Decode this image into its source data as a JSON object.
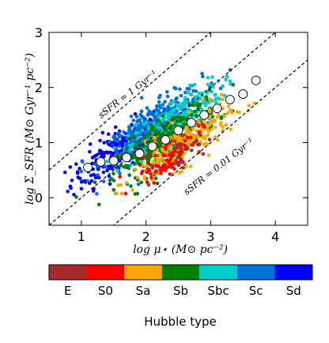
{
  "chart_data": {
    "type": "scatter",
    "xlabel": "log μ⋆ (M⊙ pc⁻²)",
    "ylabel": "log Σ_SFR (M⊙ Gyr⁻¹ pc⁻²)",
    "xlim": [
      0.5,
      4.5
    ],
    "ylim": [
      -0.5,
      3.0
    ],
    "xticks": [
      1,
      2,
      3,
      4
    ],
    "yticks": [
      0,
      1,
      2,
      3
    ],
    "grid": false,
    "reference_lines": [
      {
        "label": "sSFR = 1 Gyr⁻¹",
        "log_ssfr": 0
      },
      {
        "label": "",
        "log_ssfr": -1
      },
      {
        "label": "sSFR = 0.01 Gyr⁻¹",
        "log_ssfr": -2
      }
    ],
    "binned_means": {
      "x": [
        1.1,
        1.3,
        1.5,
        1.7,
        1.9,
        2.1,
        2.3,
        2.5,
        2.7,
        2.9,
        3.1,
        3.3,
        3.5,
        3.7
      ],
      "y": [
        0.55,
        0.65,
        0.67,
        0.73,
        0.8,
        0.93,
        1.05,
        1.22,
        1.36,
        1.5,
        1.62,
        1.78,
        1.88,
        2.13
      ]
    },
    "scatter_clusters": [
      {
        "type": "Sd",
        "cx": 1.55,
        "cy": 0.85,
        "sx": 0.35,
        "sy": 0.33,
        "n": 220
      },
      {
        "type": "Sc",
        "cx": 2.1,
        "cy": 1.25,
        "sx": 0.38,
        "sy": 0.35,
        "n": 380
      },
      {
        "type": "Sbc",
        "cx": 2.45,
        "cy": 1.4,
        "sx": 0.36,
        "sy": 0.33,
        "n": 260
      },
      {
        "type": "Sb",
        "cx": 2.35,
        "cy": 1.05,
        "sx": 0.38,
        "sy": 0.35,
        "n": 300
      },
      {
        "type": "Sa",
        "cx": 2.55,
        "cy": 0.95,
        "sx": 0.38,
        "sy": 0.33,
        "n": 220
      },
      {
        "type": "S0",
        "cx": 2.35,
        "cy": 0.75,
        "sx": 0.25,
        "sy": 0.25,
        "n": 80
      },
      {
        "type": "E",
        "cx": 2.55,
        "cy": 0.8,
        "sx": 0.2,
        "sy": 0.2,
        "n": 25
      }
    ],
    "colorbar": {
      "title": "Hubble type",
      "labels": [
        "E",
        "S0",
        "Sa",
        "Sb",
        "Sbc",
        "Sc",
        "Sd"
      ],
      "colors": [
        "#a52a2a",
        "#ff0000",
        "#ffa500",
        "#008000",
        "#00cccc",
        "#0072d6",
        "#0000ff"
      ]
    }
  },
  "annotations": {
    "line1": "sSFR = 1 Gyr⁻¹",
    "line3": "sSFR = 0.01 Gyr⁻¹"
  }
}
